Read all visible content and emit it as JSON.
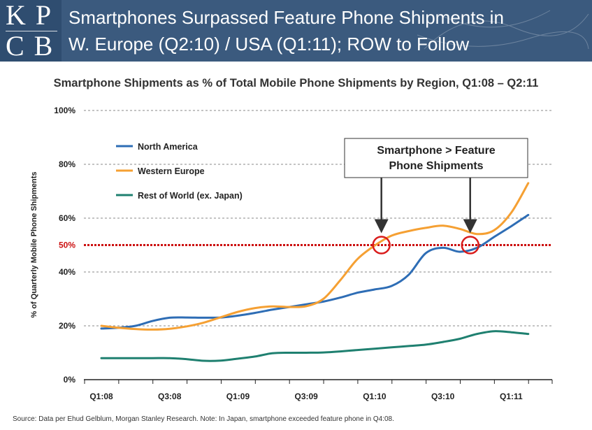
{
  "header": {
    "logo_top": "KP",
    "logo_bottom": "CB",
    "title_line1": "Smartphones Surpassed Feature Phone Shipments in",
    "title_line2": "W. Europe (Q2:10) / USA (Q1:11); ROW to Follow"
  },
  "footer": {
    "source": "Source: Data per Ehud Gelblum, Morgan Stanley Research. Note: In Japan, smartphone exceeded feature phone in Q4:08."
  },
  "colors": {
    "north_america": "#2e6db5",
    "western_europe": "#f5a033",
    "rest_of_world": "#1f8070",
    "threshold": "#cc1111",
    "marker": "#d91c1c"
  },
  "chart_data": {
    "type": "line",
    "title": "Smartphone Shipments as % of Total Mobile Phone Shipments by Region, Q1:08 – Q2:11",
    "xlabel": "",
    "ylabel": "% of Quarterly Mobile Phone Shipments",
    "x_range": [
      0,
      13.2
    ],
    "ylim": [
      0,
      100
    ],
    "y_ticks": [
      0,
      20,
      40,
      60,
      80,
      100
    ],
    "y_tick_labels": [
      "0%",
      "20%",
      "40%",
      "60%",
      "80%",
      "100%"
    ],
    "x_tick_labels": [
      {
        "x": 0,
        "label": "Q1:08"
      },
      {
        "x": 2,
        "label": "Q3:08"
      },
      {
        "x": 4,
        "label": "Q1:09"
      },
      {
        "x": 6,
        "label": "Q3:09"
      },
      {
        "x": 8,
        "label": "Q1:10"
      },
      {
        "x": 10,
        "label": "Q3:10"
      },
      {
        "x": 12,
        "label": "Q1:11"
      }
    ],
    "grid": true,
    "legend_position": "top-left",
    "series": [
      {
        "name": "North America",
        "color": "#2e6db5",
        "points": [
          [
            0,
            19
          ],
          [
            0.5,
            19.3
          ],
          [
            1,
            20
          ],
          [
            1.5,
            21.8
          ],
          [
            2,
            23
          ],
          [
            2.5,
            23.1
          ],
          [
            3,
            23
          ],
          [
            3.5,
            23.1
          ],
          [
            4,
            23.8
          ],
          [
            4.5,
            24.8
          ],
          [
            5,
            26
          ],
          [
            5.5,
            27
          ],
          [
            6,
            28
          ],
          [
            6.5,
            29
          ],
          [
            7,
            30.5
          ],
          [
            7.5,
            32.3
          ],
          [
            8,
            33.5
          ],
          [
            8.5,
            34.8
          ],
          [
            9,
            39
          ],
          [
            9.5,
            47
          ],
          [
            10,
            49
          ],
          [
            10.5,
            47.5
          ],
          [
            11,
            49
          ],
          [
            11.5,
            53
          ],
          [
            12,
            57
          ],
          [
            12.5,
            61.2
          ]
        ]
      },
      {
        "name": "Western Europe",
        "color": "#f5a033",
        "points": [
          [
            0,
            20
          ],
          [
            0.5,
            19.3
          ],
          [
            1,
            18.8
          ],
          [
            1.5,
            18.6
          ],
          [
            2,
            18.9
          ],
          [
            2.5,
            19.8
          ],
          [
            3,
            21.2
          ],
          [
            3.5,
            23.2
          ],
          [
            4,
            25.2
          ],
          [
            4.5,
            26.6
          ],
          [
            5,
            27.2
          ],
          [
            5.5,
            27
          ],
          [
            6,
            27.3
          ],
          [
            6.5,
            30
          ],
          [
            7,
            37
          ],
          [
            7.5,
            44.8
          ],
          [
            8,
            49.8
          ],
          [
            8.5,
            53.5
          ],
          [
            9,
            55.2
          ],
          [
            9.5,
            56.4
          ],
          [
            10,
            57.2
          ],
          [
            10.5,
            56
          ],
          [
            11,
            54.1
          ],
          [
            11.5,
            55.5
          ],
          [
            12,
            62
          ],
          [
            12.5,
            73
          ]
        ]
      },
      {
        "name": "Rest of World (ex. Japan)",
        "color": "#1f8070",
        "points": [
          [
            0,
            8
          ],
          [
            0.5,
            8
          ],
          [
            1,
            8
          ],
          [
            1.5,
            8
          ],
          [
            2,
            8
          ],
          [
            2.5,
            7.6
          ],
          [
            3,
            7
          ],
          [
            3.5,
            7.1
          ],
          [
            4,
            7.8
          ],
          [
            4.5,
            8.6
          ],
          [
            5,
            9.8
          ],
          [
            5.5,
            10
          ],
          [
            6,
            10
          ],
          [
            6.5,
            10.1
          ],
          [
            7,
            10.5
          ],
          [
            7.5,
            11
          ],
          [
            8,
            11.5
          ],
          [
            8.5,
            12
          ],
          [
            9,
            12.5
          ],
          [
            9.5,
            13
          ],
          [
            10,
            14
          ],
          [
            10.5,
            15.2
          ],
          [
            11,
            17
          ],
          [
            11.5,
            18
          ],
          [
            12,
            17.6
          ],
          [
            12.5,
            17
          ]
        ]
      }
    ],
    "threshold": {
      "y": 50,
      "label": "50%"
    },
    "crossover_markers": [
      {
        "x": 8.2,
        "y": 50
      },
      {
        "x": 10.8,
        "y": 50
      }
    ],
    "annotation": {
      "line1": "Smartphone > Feature",
      "line2": "Phone Shipments",
      "arrows_to_x": [
        8.2,
        10.8
      ]
    }
  }
}
